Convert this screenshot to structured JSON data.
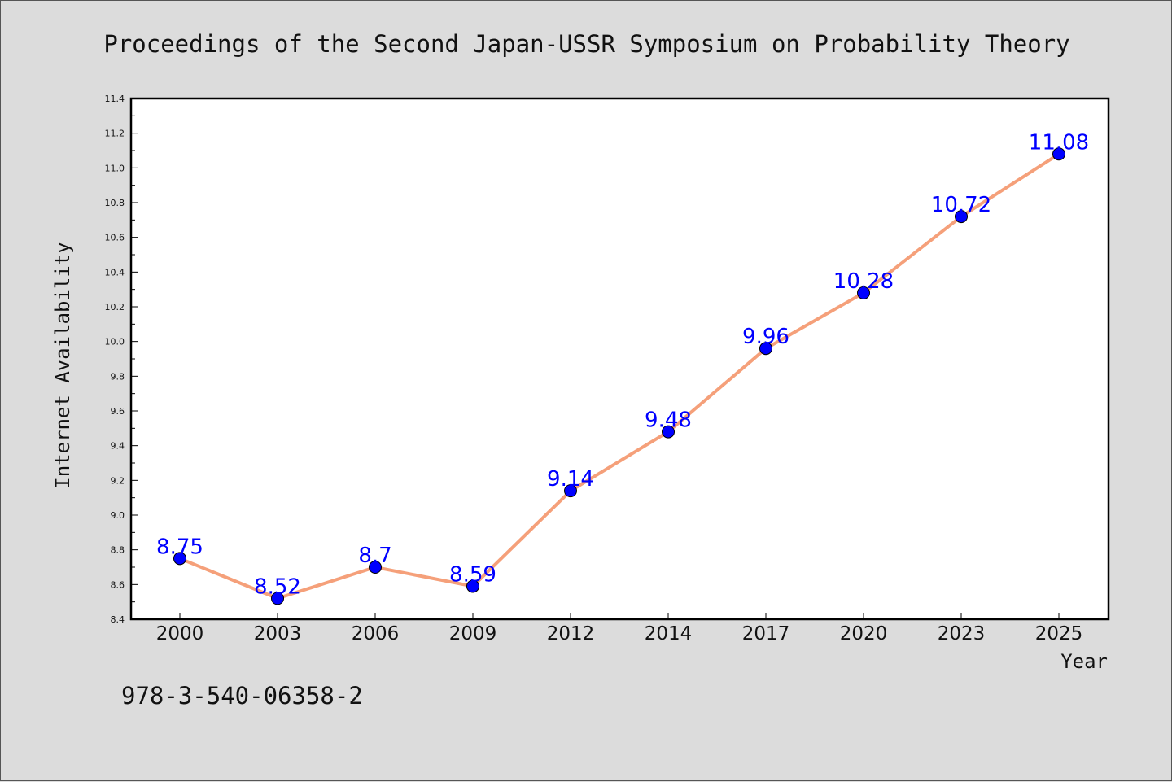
{
  "chart_data": {
    "type": "line",
    "title": "Proceedings of the Second Japan-USSR Symposium on Probability Theory",
    "xlabel": "Year",
    "ylabel": "Internet Availability",
    "categories": [
      "2000",
      "2003",
      "2006",
      "2009",
      "2012",
      "2014",
      "2017",
      "2020",
      "2023",
      "2025"
    ],
    "values": [
      8.75,
      8.52,
      8.7,
      8.59,
      9.14,
      9.48,
      9.96,
      10.28,
      10.72,
      11.08
    ],
    "data_labels": [
      "8.75",
      "8.52",
      "8.7",
      "8.59",
      "9.14",
      "9.48",
      "9.96",
      "10.28",
      "10.72",
      "11.08"
    ],
    "ylim": [
      8.4,
      11.4
    ],
    "y_ticks": [
      "8.4",
      "8.6",
      "8.8",
      "9.0",
      "9.2",
      "9.4",
      "9.6",
      "9.8",
      "10.0",
      "10.2",
      "10.4",
      "10.6",
      "10.8",
      "11.0",
      "11.2",
      "11.4"
    ],
    "grid": false,
    "legend": "none",
    "colors": {
      "line": "#f5a07a",
      "marker": "#0000ff",
      "label": "#0000ff",
      "background": "#dcdcdc",
      "plot_bg": "#ffffff"
    }
  },
  "footer": {
    "isbn": "978-3-540-06358-2"
  }
}
